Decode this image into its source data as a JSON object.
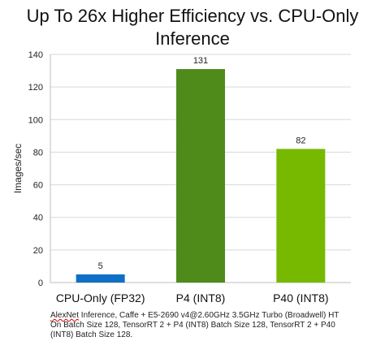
{
  "chart_data": {
    "type": "bar",
    "title": "Up To 26x Higher Efficiency vs. CPU-Only Inference",
    "title_lines": [
      "Up To 26x Higher Efficiency vs. CPU-Only",
      "Inference"
    ],
    "xlabel": "",
    "ylabel": "Images/sec",
    "ylim": [
      0,
      140
    ],
    "yticks": [
      "0",
      "20",
      "40",
      "60",
      "80",
      "100",
      "120",
      "140"
    ],
    "categories": [
      "CPU-Only (FP32)",
      "P4 (INT8)",
      "P40 (INT8)"
    ],
    "values": [
      5,
      131,
      82
    ],
    "data_labels": [
      "5",
      "131",
      "82"
    ],
    "bar_colors": [
      "#0f6fc6",
      "#4e8b1b",
      "#76b900"
    ],
    "grid": true,
    "legend": "none"
  },
  "footnote": {
    "first_word": "AlexNet",
    "line1_rest": " Inference, Caffe + E5-2690 v4@2.60GHz 3.5GHz Turbo (Broadwell) HT",
    "line2": "On Batch Size 128, TensorRT 2 + P4 (INT8) Batch Size 128, TensorRT 2 + P40",
    "line3": "(INT8) Batch Size 128."
  }
}
